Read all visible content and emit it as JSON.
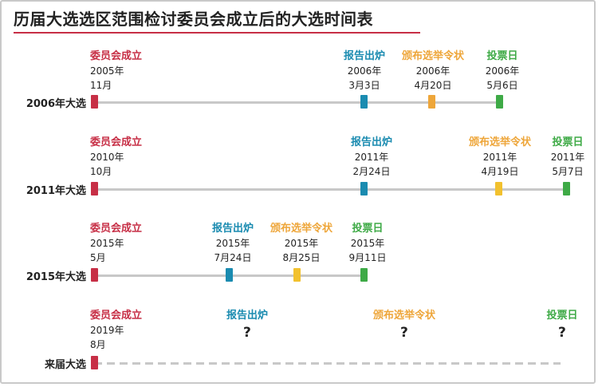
{
  "title": "历届大选选区范围检讨委员会成立后的大选时间表",
  "colors": {
    "committee": "#c72f46",
    "report": "#1a8bb0",
    "writ": "#eea63a",
    "polling": "#3eaa46",
    "writ_marker": "#f2c12e",
    "line": "#c8c8c8"
  },
  "rows": [
    {
      "label": "2006年大选",
      "events": [
        {
          "label": "委员会成立",
          "year": "2005年",
          "day": "11月"
        },
        {
          "label": "报告出炉",
          "year": "2006年",
          "day": "3月3日"
        },
        {
          "label": "颁布选举令状",
          "year": "2006年",
          "day": "4月20日"
        },
        {
          "label": "投票日",
          "year": "2006年",
          "day": "5月6日"
        }
      ]
    },
    {
      "label": "2011年大选",
      "events": [
        {
          "label": "委员会成立",
          "year": "2010年",
          "day": "10月"
        },
        {
          "label": "报告出炉",
          "year": "2011年",
          "day": "2月24日"
        },
        {
          "label": "颁布选举令状",
          "year": "2011年",
          "day": "4月19日"
        },
        {
          "label": "投票日",
          "year": "2011年",
          "day": "5月7日"
        }
      ]
    },
    {
      "label": "2015年大选",
      "events": [
        {
          "label": "委员会成立",
          "year": "2015年",
          "day": "5月"
        },
        {
          "label": "报告出炉",
          "year": "2015年",
          "day": "7月24日"
        },
        {
          "label": "颁布选举令状",
          "year": "2015年",
          "day": "8月25日"
        },
        {
          "label": "投票日",
          "year": "2015年",
          "day": "9月11日"
        }
      ]
    },
    {
      "label": "来届大选",
      "events": [
        {
          "label": "委员会成立",
          "year": "2019年",
          "day": "8月"
        },
        {
          "label": "报告出炉",
          "question": "?"
        },
        {
          "label": "颁布选举令状",
          "question": "?"
        },
        {
          "label": "投票日",
          "question": "?"
        }
      ]
    }
  ]
}
